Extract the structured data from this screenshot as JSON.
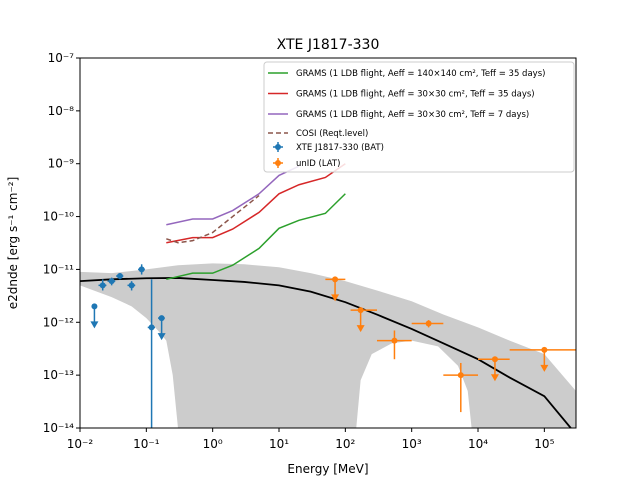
{
  "chart_data": {
    "type": "line",
    "title": "XTE J1817-330",
    "x_label": "Energy [MeV]",
    "y_label": "e2dnde [erg s⁻¹ cm⁻²]",
    "log_x": true,
    "log_y": true,
    "xlim": [
      0.01,
      300000
    ],
    "ylim": [
      1e-14,
      1e-07
    ],
    "xticks": [
      {
        "value": 0.01,
        "label": "10⁻²"
      },
      {
        "value": 0.1,
        "label": "10⁻¹"
      },
      {
        "value": 1,
        "label": "10⁰"
      },
      {
        "value": 10,
        "label": "10¹"
      },
      {
        "value": 100,
        "label": "10²"
      },
      {
        "value": 1000,
        "label": "10³"
      },
      {
        "value": 10000,
        "label": "10⁴"
      },
      {
        "value": 100000,
        "label": "10⁵"
      }
    ],
    "yticks": [
      {
        "value": 1e-14,
        "label": "10⁻¹⁴"
      },
      {
        "value": 1e-13,
        "label": "10⁻¹³"
      },
      {
        "value": 1e-12,
        "label": "10⁻¹²"
      },
      {
        "value": 1e-11,
        "label": "10⁻¹¹"
      },
      {
        "value": 1e-10,
        "label": "10⁻¹⁰"
      },
      {
        "value": 1e-09,
        "label": "10⁻⁹"
      },
      {
        "value": 1e-08,
        "label": "10⁻⁸"
      },
      {
        "value": 1e-07,
        "label": "10⁻⁷"
      }
    ],
    "band": {
      "color": "#cccccc",
      "upper": {
        "x": [
          0.01,
          0.03,
          0.1,
          0.3,
          1,
          3,
          10,
          30,
          100,
          300,
          1000,
          3000,
          10000,
          30000,
          100000,
          300000
        ],
        "values": [
          9e-12,
          8.5e-12,
          1e-11,
          1.2e-11,
          1.3e-11,
          1.25e-11,
          1.1e-11,
          8.5e-12,
          6e-12,
          4e-12,
          2.5e-12,
          1.4e-12,
          8e-13,
          4.5e-13,
          2.5e-13,
          5e-14
        ]
      },
      "lower": {
        "x": [
          0.01,
          0.03,
          0.06,
          0.1,
          0.15,
          0.2,
          0.25,
          0.3,
          146,
          170,
          250,
          500,
          1000,
          2500,
          5000,
          7000,
          8000,
          300000
        ],
        "values": [
          5e-12,
          3e-12,
          2e-12,
          1.2e-12,
          7e-13,
          4.5e-13,
          1e-13,
          1e-14,
          1e-14,
          8e-14,
          2.5e-13,
          4e-13,
          4.5e-13,
          3.5e-13,
          1.5e-13,
          5e-14,
          1e-14,
          1e-14
        ]
      }
    },
    "model": {
      "color": "#000000",
      "x": [
        0.01,
        0.03,
        0.1,
        0.3,
        1,
        3,
        10,
        30,
        100,
        300,
        1000,
        3000,
        10000,
        30000,
        100000,
        250000
      ],
      "values": [
        6e-12,
        6.5e-12,
        6.8e-12,
        6.9e-12,
        6.3e-12,
        5.8e-12,
        5e-12,
        3.8e-12,
        2.4e-12,
        1.4e-12,
        7.5e-13,
        4e-13,
        2e-13,
        9e-14,
        4e-14,
        1e-14
      ]
    },
    "series": [
      {
        "name": "GRAMS (1 LDB flight, Aeff = 140×140 cm², Teff = 35 days)",
        "color": "#2ca02c",
        "dash": false,
        "x": [
          0.2,
          0.5,
          1,
          2,
          5,
          10,
          20,
          50,
          100
        ],
        "values": [
          6.5e-12,
          8.5e-12,
          8.5e-12,
          1.2e-11,
          2.5e-11,
          6e-11,
          8.5e-11,
          1.15e-10,
          2.7e-10
        ]
      },
      {
        "name": "GRAMS (1 LDB flight, Aeff = 30×30 cm², Teff = 35 days)",
        "color": "#d62728",
        "dash": false,
        "x": [
          0.2,
          0.5,
          1,
          2,
          5,
          10,
          20,
          50,
          100
        ],
        "values": [
          3.2e-11,
          4e-11,
          4e-11,
          5.8e-11,
          1.2e-10,
          2.7e-10,
          4e-10,
          5.5e-10,
          1e-09
        ]
      },
      {
        "name": "GRAMS (1 LDB flight, Aeff = 30×30 cm², Teff = 7 days)",
        "color": "#9467bd",
        "dash": false,
        "x": [
          0.2,
          0.5,
          1,
          2,
          5,
          10,
          20
        ],
        "values": [
          7e-11,
          9e-11,
          9e-11,
          1.3e-10,
          2.7e-10,
          6e-10,
          9e-10
        ]
      },
      {
        "name": "COSI (Reqt.level)",
        "color": "#8c564b",
        "dash": true,
        "x": [
          0.2,
          0.3,
          0.5,
          1,
          2,
          5
        ],
        "values": [
          3.8e-11,
          3.2e-11,
          3.5e-11,
          5e-11,
          1e-10,
          2.5e-10
        ]
      }
    ],
    "points": [
      {
        "name": "XTE J1817-330 (BAT)",
        "color": "#1f77b4",
        "x": [
          0.0165,
          0.022,
          0.03,
          0.04,
          0.06,
          0.085,
          0.12,
          0.17
        ],
        "values": [
          2e-12,
          5e-12,
          6e-12,
          7.5e-12,
          5e-12,
          1e-11,
          8e-13,
          1.2e-12
        ],
        "xlow": [
          null,
          0.019,
          0.026,
          0.035,
          0.052,
          0.075,
          0.105,
          0.15
        ],
        "xhigh": [
          null,
          0.025,
          0.034,
          0.045,
          0.068,
          0.095,
          0.135,
          0.19
        ],
        "ylow": [
          null,
          4e-12,
          5e-12,
          6.5e-12,
          4e-12,
          8e-12,
          1e-14,
          null
        ],
        "yhigh": [
          null,
          6.5e-12,
          7e-12,
          8.5e-12,
          6e-12,
          1.25e-11,
          6.5e-12,
          null
        ],
        "upper_limit": [
          true,
          false,
          false,
          false,
          false,
          false,
          false,
          true
        ]
      },
      {
        "name": "unID (LAT)",
        "color": "#ff7f0e",
        "x": [
          70,
          170,
          550,
          1800,
          5500,
          18000,
          100000
        ],
        "values": [
          6.5e-12,
          1.7e-12,
          4.5e-13,
          9.5e-13,
          1e-13,
          2e-13,
          3e-13
        ],
        "xlow": [
          50,
          120,
          300,
          1000,
          3000,
          10000,
          30000
        ],
        "xhigh": [
          100,
          300,
          1000,
          3000,
          10000,
          30000,
          300000
        ],
        "ylow": [
          null,
          null,
          2e-13,
          8e-13,
          2e-14,
          null,
          null
        ],
        "yhigh": [
          null,
          null,
          7e-13,
          1.1e-12,
          1.7e-13,
          null,
          null
        ],
        "upper_limit": [
          true,
          true,
          false,
          false,
          false,
          true,
          true
        ]
      }
    ]
  }
}
